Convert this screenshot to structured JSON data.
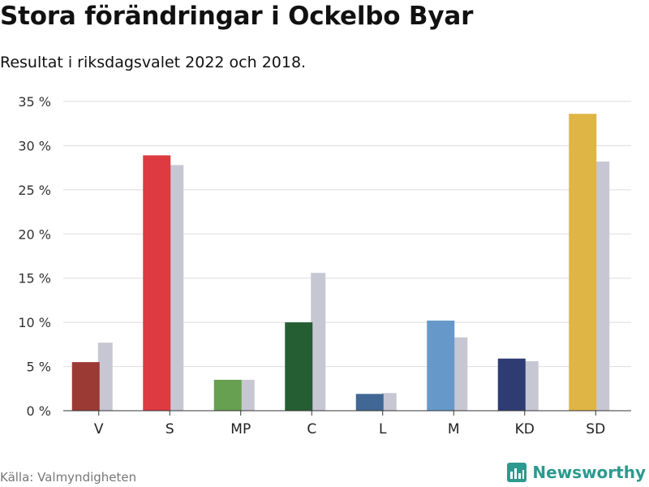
{
  "title": "Stora förändringar i Ockelbo Byar",
  "subtitle": "Resultat i riksdagsvalet 2022 och 2018.",
  "source": "Källa: Valmyndigheten",
  "brand": {
    "name": "Newsworthy",
    "icon": "bar-chart-logo-icon",
    "color": "#2c9a8e"
  },
  "chart_data": {
    "type": "bar",
    "categories": [
      "V",
      "S",
      "MP",
      "C",
      "L",
      "M",
      "KD",
      "SD"
    ],
    "series": [
      {
        "values": [
          5.5,
          28.9,
          3.5,
          10.0,
          1.9,
          10.2,
          5.9,
          33.6
        ],
        "colors": [
          "#9b3a34",
          "#dd3a42",
          "#66a050",
          "#265e34",
          "#416894",
          "#6699c9",
          "#2f3c74",
          "#dfb545"
        ]
      },
      {
        "values": [
          7.7,
          27.8,
          3.5,
          15.6,
          2.0,
          8.3,
          5.6,
          28.2
        ],
        "color": "#c7c7d4"
      }
    ],
    "ylim": [
      0,
      35
    ],
    "yticks": [
      0,
      5,
      10,
      15,
      20,
      25,
      30,
      35
    ],
    "ytick_labels": [
      "0 %",
      "5 %",
      "10 %",
      "15 %",
      "20 %",
      "25 %",
      "30 %",
      "35 %"
    ],
    "grid": true
  }
}
